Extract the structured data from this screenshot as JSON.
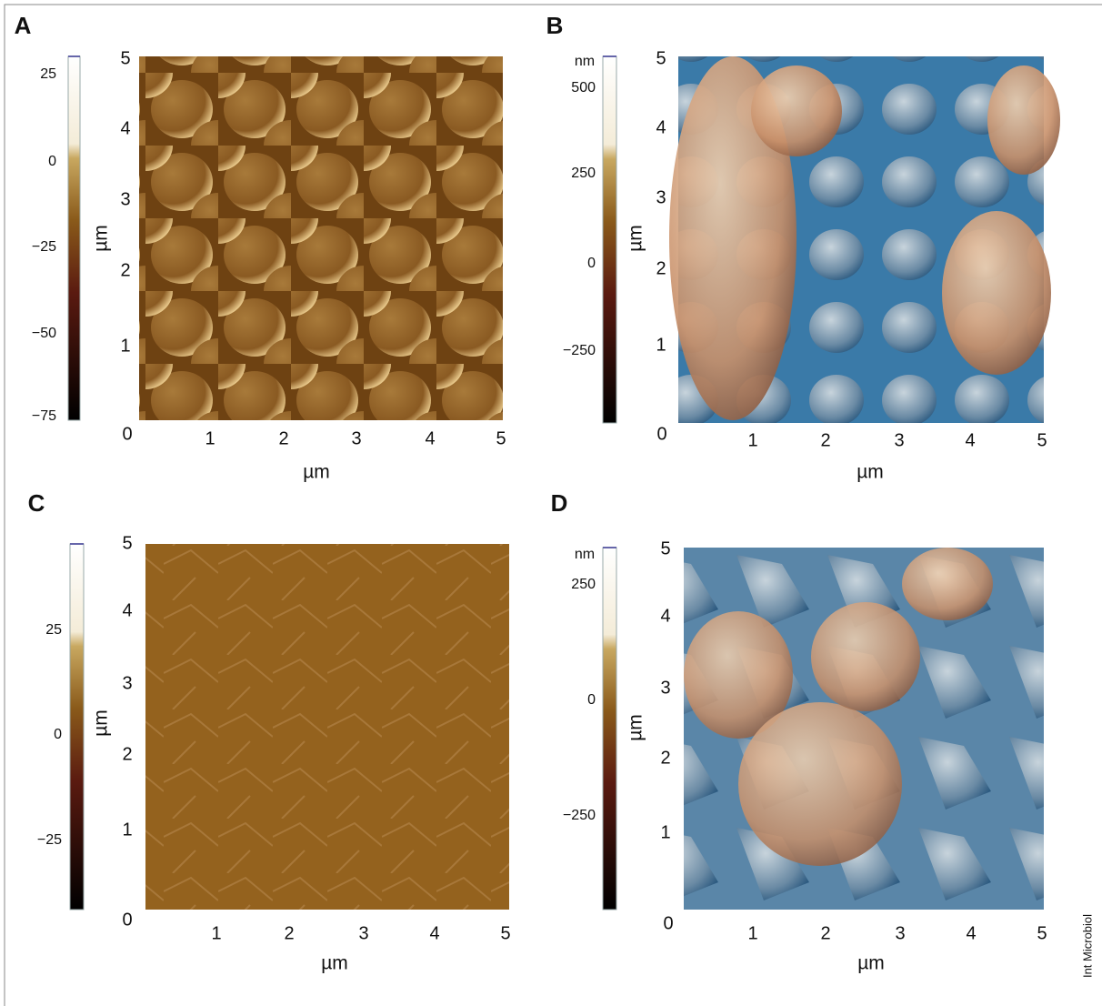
{
  "panels": [
    {
      "label": "A",
      "colorbar_ticks": [
        "25",
        "0",
        "−25",
        "−50",
        "−75"
      ],
      "y_axis_label": "µm",
      "y_ticks": [
        "5",
        "4",
        "3",
        "2",
        "1"
      ],
      "origin": "0",
      "x_ticks": [
        "1",
        "2",
        "3",
        "4",
        "5"
      ],
      "x_axis_label": "µm"
    },
    {
      "label": "B",
      "colorbar_unit": "nm",
      "colorbar_ticks": [
        "500",
        "250",
        "0",
        "−250"
      ],
      "y_axis_label": "µm",
      "y_ticks": [
        "5",
        "4",
        "3",
        "2",
        "1"
      ],
      "origin": "0",
      "x_ticks": [
        "1",
        "2",
        "3",
        "4",
        "5"
      ],
      "x_axis_label": "µm"
    },
    {
      "label": "C",
      "colorbar_ticks": [
        "25",
        "0",
        "−25"
      ],
      "y_axis_label": "µm",
      "y_ticks": [
        "5",
        "4",
        "3",
        "2",
        "1"
      ],
      "origin": "0",
      "x_ticks": [
        "1",
        "2",
        "3",
        "4",
        "5"
      ],
      "x_axis_label": "µm"
    },
    {
      "label": "D",
      "colorbar_unit": "nm",
      "colorbar_ticks": [
        "250",
        "0",
        "−250"
      ],
      "y_axis_label": "µm",
      "y_ticks": [
        "5",
        "4",
        "3",
        "2",
        "1"
      ],
      "origin": "0",
      "x_ticks": [
        "1",
        "2",
        "3",
        "4",
        "5"
      ],
      "x_axis_label": "µm"
    }
  ],
  "source": "Int Microbiol"
}
